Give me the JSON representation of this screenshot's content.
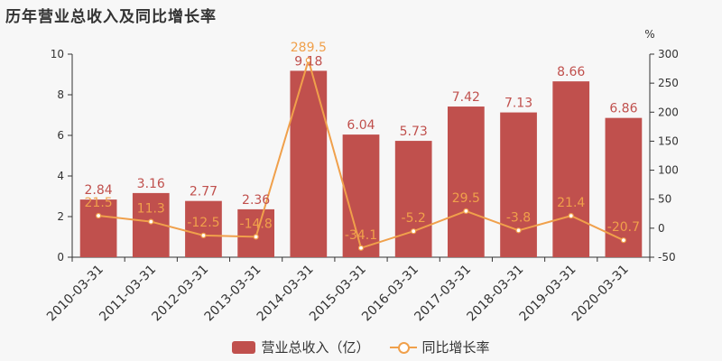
{
  "title": "历年营业总收入及同比增长率",
  "chart_data": {
    "type": "bar",
    "categories": [
      "2010-03-31",
      "2011-03-31",
      "2012-03-31",
      "2013-03-31",
      "2014-03-31",
      "2015-03-31",
      "2016-03-31",
      "2017-03-31",
      "2018-03-31",
      "2019-03-31",
      "2020-03-31"
    ],
    "series": [
      {
        "name": "营业总收入（亿）",
        "type": "bar",
        "axis": "left",
        "color": "#c0504d",
        "values": [
          2.84,
          3.16,
          2.77,
          2.36,
          9.18,
          6.04,
          5.73,
          7.42,
          7.13,
          8.66,
          6.86
        ],
        "labels": [
          "2.84",
          "3.16",
          "2.77",
          "2.36",
          "9.18",
          "6.04",
          "5.73",
          "7.42",
          "7.13",
          "8.66",
          "6.86"
        ]
      },
      {
        "name": "同比增长率",
        "type": "line",
        "axis": "right",
        "color": "#f0a04b",
        "values": [
          21.5,
          11.3,
          -12.5,
          -14.8,
          289.5,
          -34.1,
          -5.2,
          29.5,
          -3.8,
          21.4,
          -20.7
        ],
        "labels": [
          "21.5",
          "11.3",
          "-12.5",
          "-14.8",
          "289.5",
          "-34.1",
          "-5.2",
          "29.5",
          "-3.8",
          "21.4",
          "-20.7"
        ]
      }
    ],
    "y_left": {
      "ylim": [
        0,
        10
      ],
      "ticks": [
        "0",
        "2",
        "4",
        "6",
        "8",
        "10"
      ]
    },
    "y_right": {
      "unit": "%",
      "ylim": [
        -50,
        300
      ],
      "ticks": [
        "-50",
        "0",
        "50",
        "100",
        "150",
        "200",
        "250",
        "300"
      ]
    },
    "legend_position": "bottom-center",
    "grid": false
  }
}
